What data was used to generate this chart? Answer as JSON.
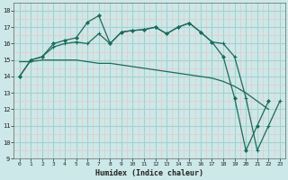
{
  "xlabel": "Humidex (Indice chaleur)",
  "bg_color": "#cce8e8",
  "grid_major_color": "#aacfcf",
  "grid_minor_color": "#e8c8c8",
  "line_color": "#1a6b5a",
  "xlim": [
    -0.5,
    23.5
  ],
  "ylim": [
    9,
    18.5
  ],
  "yticks": [
    9,
    10,
    11,
    12,
    13,
    14,
    15,
    16,
    17,
    18
  ],
  "xticks": [
    0,
    1,
    2,
    3,
    4,
    5,
    6,
    7,
    8,
    9,
    10,
    11,
    12,
    13,
    14,
    15,
    16,
    17,
    18,
    19,
    20,
    21,
    22,
    23
  ],
  "curve1_x": [
    0,
    1,
    2,
    3,
    4,
    5,
    6,
    7,
    8,
    9,
    10,
    11,
    12,
    13,
    14,
    15,
    16,
    17,
    18,
    19,
    20,
    21,
    22,
    23
  ],
  "curve1_y": [
    14.0,
    15.0,
    15.2,
    16.0,
    16.2,
    16.35,
    17.3,
    17.7,
    16.0,
    16.7,
    16.8,
    16.85,
    17.0,
    16.6,
    17.0,
    17.25,
    16.7,
    16.1,
    15.2,
    12.7,
    9.5,
    11.0,
    12.5,
    null
  ],
  "curve2_x": [
    0,
    1,
    2,
    3,
    4,
    5,
    6,
    7,
    8,
    9,
    10,
    11,
    12,
    13,
    14,
    15,
    16,
    17,
    18,
    19,
    20,
    21,
    22,
    23
  ],
  "curve2_y": [
    14.0,
    15.0,
    15.2,
    15.8,
    16.0,
    16.1,
    16.0,
    16.6,
    16.0,
    16.7,
    16.8,
    16.85,
    17.0,
    16.6,
    17.0,
    17.25,
    16.7,
    16.1,
    16.0,
    15.2,
    12.7,
    9.5,
    11.0,
    12.5
  ],
  "curve3_x": [
    0,
    1,
    2,
    3,
    4,
    5,
    6,
    7,
    8,
    9,
    10,
    11,
    12,
    13,
    14,
    15,
    16,
    17,
    18,
    19,
    20,
    21,
    22,
    23
  ],
  "curve3_y": [
    14.9,
    14.9,
    15.0,
    15.0,
    15.0,
    15.0,
    14.9,
    14.8,
    14.8,
    14.7,
    14.6,
    14.5,
    14.4,
    14.3,
    14.2,
    14.1,
    14.0,
    13.9,
    13.7,
    13.4,
    13.0,
    12.5,
    12.0,
    null
  ]
}
